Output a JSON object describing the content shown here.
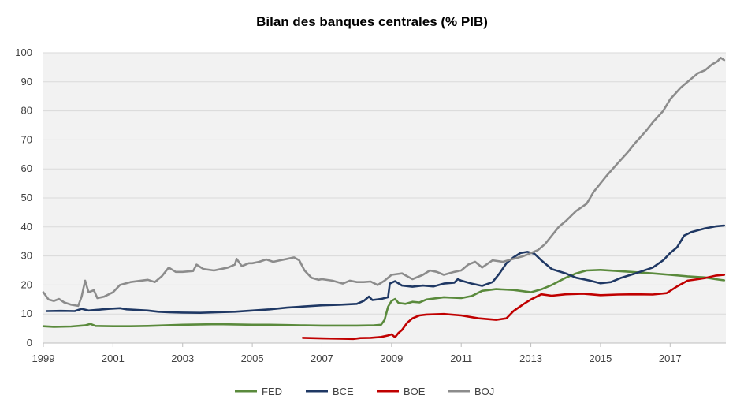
{
  "chart_data": {
    "type": "line",
    "title": "Bilan des banques centrales (% PIB)",
    "xlabel": "",
    "ylabel": "",
    "xlim": [
      1999.0,
      2018.6
    ],
    "ylim": [
      0,
      100
    ],
    "x_ticks": [
      "1999",
      "2001",
      "2003",
      "2005",
      "2007",
      "2009",
      "2011",
      "2013",
      "2015",
      "2017"
    ],
    "y_ticks": [
      "0",
      "10",
      "20",
      "30",
      "40",
      "50",
      "60",
      "70",
      "80",
      "90",
      "100"
    ],
    "grid": "horizontal",
    "legend_position": "bottom",
    "series": [
      {
        "name": "FED",
        "color": "#5a8a3c",
        "points": [
          [
            1999.0,
            5.8
          ],
          [
            1999.3,
            5.6
          ],
          [
            1999.8,
            5.7
          ],
          [
            2000.2,
            6.1
          ],
          [
            2000.35,
            6.6
          ],
          [
            2000.5,
            5.9
          ],
          [
            2001.0,
            5.8
          ],
          [
            2001.5,
            5.8
          ],
          [
            2002.0,
            5.9
          ],
          [
            2002.5,
            6.1
          ],
          [
            2003.0,
            6.3
          ],
          [
            2003.5,
            6.4
          ],
          [
            2004.0,
            6.5
          ],
          [
            2004.5,
            6.4
          ],
          [
            2005.0,
            6.3
          ],
          [
            2005.5,
            6.3
          ],
          [
            2006.0,
            6.2
          ],
          [
            2006.5,
            6.1
          ],
          [
            2007.0,
            6.0
          ],
          [
            2007.5,
            6.0
          ],
          [
            2008.0,
            6.0
          ],
          [
            2008.5,
            6.1
          ],
          [
            2008.7,
            6.3
          ],
          [
            2008.8,
            8.0
          ],
          [
            2008.9,
            12.5
          ],
          [
            2009.0,
            14.5
          ],
          [
            2009.1,
            15.2
          ],
          [
            2009.2,
            13.8
          ],
          [
            2009.4,
            13.5
          ],
          [
            2009.6,
            14.2
          ],
          [
            2009.8,
            14.0
          ],
          [
            2010.0,
            15.0
          ],
          [
            2010.5,
            15.8
          ],
          [
            2011.0,
            15.5
          ],
          [
            2011.3,
            16.2
          ],
          [
            2011.6,
            18.0
          ],
          [
            2012.0,
            18.6
          ],
          [
            2012.5,
            18.3
          ],
          [
            2013.0,
            17.5
          ],
          [
            2013.3,
            18.5
          ],
          [
            2013.6,
            20.0
          ],
          [
            2014.0,
            22.5
          ],
          [
            2014.3,
            24.0
          ],
          [
            2014.6,
            25.0
          ],
          [
            2015.0,
            25.2
          ],
          [
            2015.5,
            24.8
          ],
          [
            2016.0,
            24.4
          ],
          [
            2016.5,
            24.0
          ],
          [
            2017.0,
            23.5
          ],
          [
            2017.5,
            23.0
          ],
          [
            2018.0,
            22.6
          ],
          [
            2018.3,
            22.0
          ],
          [
            2018.55,
            21.6
          ]
        ]
      },
      {
        "name": "BCE",
        "color": "#1f3864",
        "points": [
          [
            1999.1,
            11.0
          ],
          [
            1999.5,
            11.1
          ],
          [
            1999.9,
            11.0
          ],
          [
            2000.1,
            11.8
          ],
          [
            2000.3,
            11.2
          ],
          [
            2000.6,
            11.5
          ],
          [
            2000.9,
            11.8
          ],
          [
            2001.2,
            12.0
          ],
          [
            2001.4,
            11.6
          ],
          [
            2001.7,
            11.4
          ],
          [
            2002.0,
            11.2
          ],
          [
            2002.3,
            10.8
          ],
          [
            2002.6,
            10.6
          ],
          [
            2003.0,
            10.5
          ],
          [
            2003.5,
            10.4
          ],
          [
            2004.0,
            10.6
          ],
          [
            2004.5,
            10.8
          ],
          [
            2005.0,
            11.2
          ],
          [
            2005.5,
            11.6
          ],
          [
            2006.0,
            12.2
          ],
          [
            2006.5,
            12.6
          ],
          [
            2007.0,
            13.0
          ],
          [
            2007.5,
            13.2
          ],
          [
            2008.0,
            13.5
          ],
          [
            2008.2,
            14.5
          ],
          [
            2008.35,
            16.0
          ],
          [
            2008.45,
            14.8
          ],
          [
            2008.7,
            15.2
          ],
          [
            2008.9,
            15.8
          ],
          [
            2008.95,
            20.5
          ],
          [
            2009.1,
            21.3
          ],
          [
            2009.3,
            19.8
          ],
          [
            2009.6,
            19.4
          ],
          [
            2009.9,
            19.8
          ],
          [
            2010.2,
            19.5
          ],
          [
            2010.5,
            20.5
          ],
          [
            2010.8,
            20.8
          ],
          [
            2010.9,
            22.0
          ],
          [
            2011.0,
            21.5
          ],
          [
            2011.3,
            20.5
          ],
          [
            2011.6,
            19.7
          ],
          [
            2011.9,
            21.0
          ],
          [
            2012.1,
            24.0
          ],
          [
            2012.3,
            27.5
          ],
          [
            2012.5,
            29.5
          ],
          [
            2012.7,
            31.0
          ],
          [
            2012.9,
            31.4
          ],
          [
            2013.1,
            30.8
          ],
          [
            2013.3,
            28.5
          ],
          [
            2013.6,
            25.5
          ],
          [
            2014.0,
            24.0
          ],
          [
            2014.3,
            22.5
          ],
          [
            2014.7,
            21.5
          ],
          [
            2015.0,
            20.6
          ],
          [
            2015.3,
            21.0
          ],
          [
            2015.6,
            22.5
          ],
          [
            2016.0,
            24.0
          ],
          [
            2016.5,
            26.0
          ],
          [
            2016.8,
            28.5
          ],
          [
            2017.0,
            31.0
          ],
          [
            2017.2,
            33.0
          ],
          [
            2017.4,
            37.0
          ],
          [
            2017.6,
            38.2
          ],
          [
            2018.0,
            39.5
          ],
          [
            2018.3,
            40.2
          ],
          [
            2018.55,
            40.5
          ]
        ]
      },
      {
        "name": "BOE",
        "color": "#c00000",
        "points": [
          [
            2006.45,
            1.8
          ],
          [
            2007.0,
            1.6
          ],
          [
            2007.5,
            1.5
          ],
          [
            2007.9,
            1.4
          ],
          [
            2008.1,
            1.7
          ],
          [
            2008.4,
            1.8
          ],
          [
            2008.7,
            2.1
          ],
          [
            2008.9,
            2.6
          ],
          [
            2009.0,
            3.0
          ],
          [
            2009.1,
            2.0
          ],
          [
            2009.2,
            3.5
          ],
          [
            2009.3,
            4.5
          ],
          [
            2009.45,
            7.0
          ],
          [
            2009.6,
            8.5
          ],
          [
            2009.8,
            9.5
          ],
          [
            2010.0,
            9.8
          ],
          [
            2010.5,
            10.0
          ],
          [
            2011.0,
            9.5
          ],
          [
            2011.5,
            8.5
          ],
          [
            2012.0,
            8.0
          ],
          [
            2012.3,
            8.5
          ],
          [
            2012.5,
            11.0
          ],
          [
            2012.8,
            13.5
          ],
          [
            2013.0,
            15.0
          ],
          [
            2013.3,
            16.8
          ],
          [
            2013.6,
            16.3
          ],
          [
            2014.0,
            16.8
          ],
          [
            2014.5,
            17.0
          ],
          [
            2015.0,
            16.5
          ],
          [
            2015.5,
            16.7
          ],
          [
            2016.0,
            16.8
          ],
          [
            2016.5,
            16.7
          ],
          [
            2016.9,
            17.2
          ],
          [
            2017.2,
            19.5
          ],
          [
            2017.5,
            21.5
          ],
          [
            2017.8,
            22.0
          ],
          [
            2018.0,
            22.4
          ],
          [
            2018.3,
            23.2
          ],
          [
            2018.55,
            23.5
          ]
        ]
      },
      {
        "name": "BOJ",
        "color": "#8c8c8c",
        "points": [
          [
            1999.0,
            17.5
          ],
          [
            1999.15,
            15.0
          ],
          [
            1999.3,
            14.5
          ],
          [
            1999.45,
            15.2
          ],
          [
            1999.6,
            14.0
          ],
          [
            1999.8,
            13.2
          ],
          [
            2000.0,
            12.8
          ],
          [
            2000.1,
            16.0
          ],
          [
            2000.2,
            21.5
          ],
          [
            2000.3,
            17.5
          ],
          [
            2000.45,
            18.2
          ],
          [
            2000.55,
            15.5
          ],
          [
            2000.75,
            16.0
          ],
          [
            2001.0,
            17.5
          ],
          [
            2001.2,
            20.0
          ],
          [
            2001.5,
            21.0
          ],
          [
            2001.8,
            21.5
          ],
          [
            2002.0,
            21.8
          ],
          [
            2002.2,
            21.0
          ],
          [
            2002.4,
            23.0
          ],
          [
            2002.6,
            26.0
          ],
          [
            2002.8,
            24.5
          ],
          [
            2003.0,
            24.5
          ],
          [
            2003.3,
            24.8
          ],
          [
            2003.4,
            27.0
          ],
          [
            2003.6,
            25.5
          ],
          [
            2003.9,
            25.0
          ],
          [
            2004.1,
            25.5
          ],
          [
            2004.3,
            26.0
          ],
          [
            2004.5,
            27.0
          ],
          [
            2004.55,
            29.0
          ],
          [
            2004.7,
            26.5
          ],
          [
            2004.9,
            27.5
          ],
          [
            2005.0,
            27.5
          ],
          [
            2005.2,
            28.0
          ],
          [
            2005.4,
            28.8
          ],
          [
            2005.6,
            28.0
          ],
          [
            2005.8,
            28.5
          ],
          [
            2006.0,
            29.0
          ],
          [
            2006.2,
            29.5
          ],
          [
            2006.35,
            28.5
          ],
          [
            2006.5,
            25.0
          ],
          [
            2006.7,
            22.5
          ],
          [
            2006.9,
            21.8
          ],
          [
            2007.0,
            22.0
          ],
          [
            2007.3,
            21.5
          ],
          [
            2007.6,
            20.5
          ],
          [
            2007.8,
            21.5
          ],
          [
            2008.0,
            21.0
          ],
          [
            2008.2,
            21.0
          ],
          [
            2008.4,
            21.2
          ],
          [
            2008.6,
            20.0
          ],
          [
            2008.8,
            21.5
          ],
          [
            2009.0,
            23.5
          ],
          [
            2009.3,
            24.0
          ],
          [
            2009.6,
            22.0
          ],
          [
            2009.9,
            23.5
          ],
          [
            2010.1,
            25.0
          ],
          [
            2010.3,
            24.5
          ],
          [
            2010.5,
            23.5
          ],
          [
            2010.8,
            24.5
          ],
          [
            2011.0,
            25.0
          ],
          [
            2011.2,
            27.0
          ],
          [
            2011.4,
            28.0
          ],
          [
            2011.6,
            26.0
          ],
          [
            2011.9,
            28.5
          ],
          [
            2012.2,
            28.0
          ],
          [
            2012.5,
            29.0
          ],
          [
            2012.8,
            30.0
          ],
          [
            2013.0,
            31.0
          ],
          [
            2013.2,
            32.0
          ],
          [
            2013.4,
            34.0
          ],
          [
            2013.6,
            37.0
          ],
          [
            2013.8,
            40.0
          ],
          [
            2014.0,
            42.0
          ],
          [
            2014.3,
            45.5
          ],
          [
            2014.6,
            48.0
          ],
          [
            2014.8,
            52.0
          ],
          [
            2015.0,
            55.0
          ],
          [
            2015.2,
            58.0
          ],
          [
            2015.5,
            62.0
          ],
          [
            2015.8,
            66.0
          ],
          [
            2016.0,
            69.0
          ],
          [
            2016.3,
            73.0
          ],
          [
            2016.5,
            76.0
          ],
          [
            2016.8,
            80.0
          ],
          [
            2017.0,
            84.0
          ],
          [
            2017.3,
            88.0
          ],
          [
            2017.6,
            91.0
          ],
          [
            2017.8,
            93.0
          ],
          [
            2018.0,
            94.0
          ],
          [
            2018.2,
            96.0
          ],
          [
            2018.35,
            97.0
          ],
          [
            2018.45,
            98.3
          ],
          [
            2018.55,
            97.5
          ]
        ]
      }
    ]
  }
}
